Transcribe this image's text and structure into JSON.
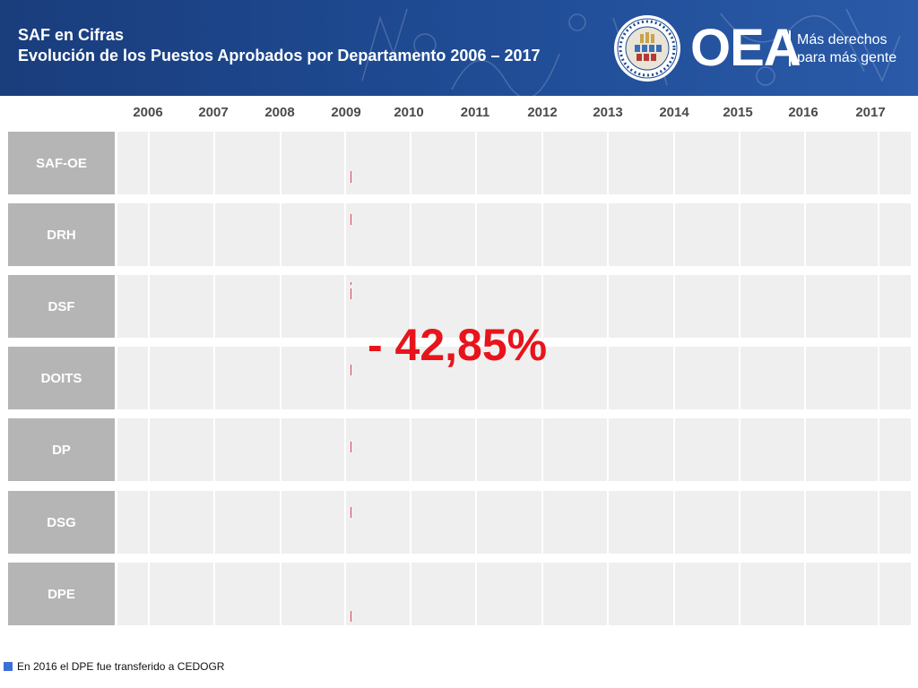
{
  "header": {
    "title": "SAF en Cifras",
    "subtitle": "Evolución de los Puestos Aprobados por Departamento 2006 – 2017",
    "brand": "OEA",
    "tagline_line1": "Más derechos",
    "tagline_line2": "para más gente"
  },
  "years": [
    "2006",
    "2007",
    "2008",
    "2009",
    "2010",
    "2011",
    "2012",
    "2013",
    "2014",
    "2015",
    "2016",
    "2017"
  ],
  "rows": [
    {
      "label": "SAF-OE"
    },
    {
      "label": "DRH"
    },
    {
      "label": "DSF"
    },
    {
      "label": "DOITS"
    },
    {
      "label": "DP"
    },
    {
      "label": "DSG"
    },
    {
      "label": "DPE"
    }
  ],
  "highlight": "- 42,85%",
  "footnote": "En 2016 el DPE fue transferido a CEDOGR",
  "colors": {
    "header_bg": "#1e4a92",
    "row_label_bg": "#b5b5b5",
    "row_band_bg": "#efefef",
    "highlight": "#e8141c",
    "footnote_marker": "#3b6fd9"
  }
}
